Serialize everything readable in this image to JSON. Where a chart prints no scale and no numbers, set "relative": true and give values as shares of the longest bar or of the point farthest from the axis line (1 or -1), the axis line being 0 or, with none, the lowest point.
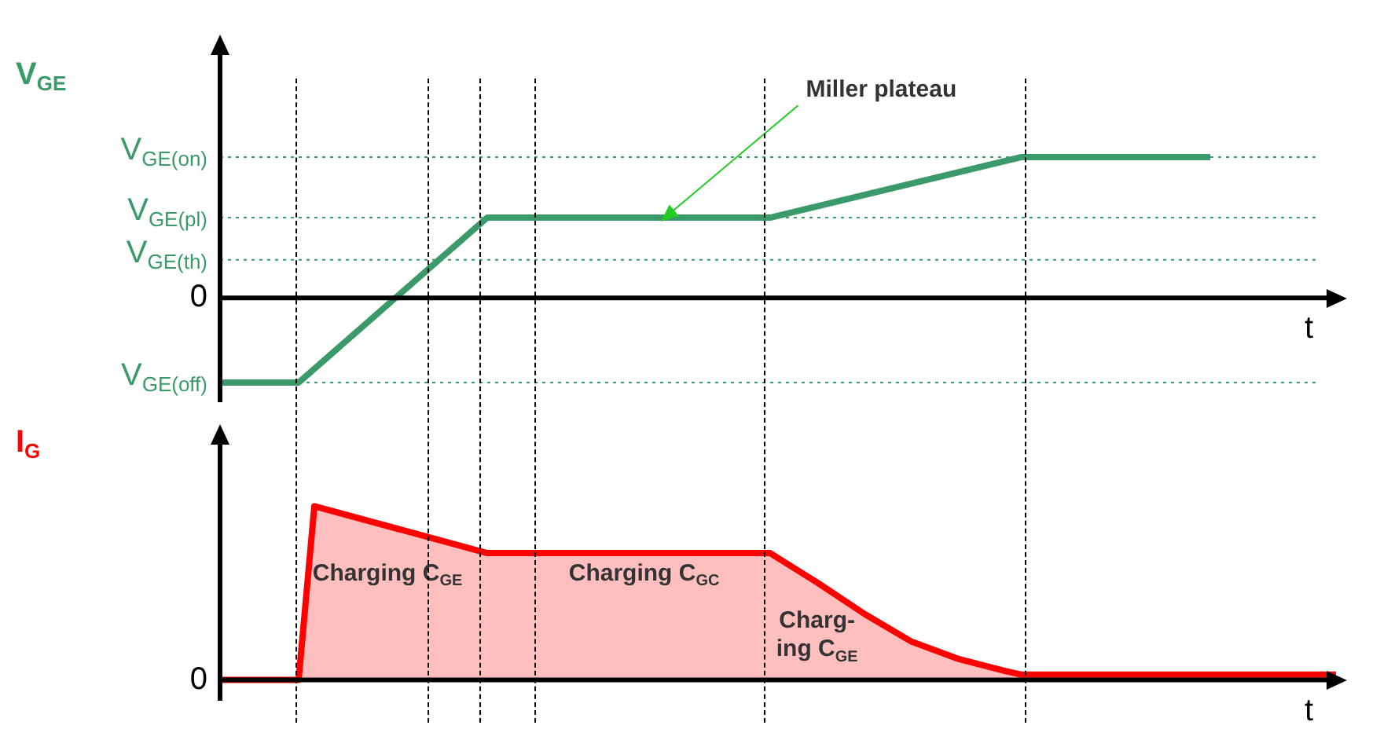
{
  "chart_data": [
    {
      "type": "line",
      "ylabel": "V$_{GE}$",
      "xlabel": "t",
      "relative": true,
      "tick_labels": false,
      "legend": false,
      "categories": [
        null,
        null,
        null,
        null,
        null,
        null,
        null,
        null,
        null,
        null,
        null,
        null,
        null,
        null,
        null,
        null,
        null,
        null,
        null,
        null,
        null,
        null,
        null,
        null,
        null,
        null,
        null,
        null,
        null,
        null,
        null,
        null,
        null,
        null,
        null,
        null,
        null,
        null,
        null,
        null,
        null,
        null,
        null,
        null,
        null,
        null,
        null,
        null,
        null,
        null,
        null,
        null,
        null,
        null,
        null,
        null,
        null,
        null,
        null,
        null,
        null,
        null,
        null,
        null,
        null,
        null,
        null,
        null,
        null,
        null,
        null,
        null
      ],
      "series": [
        {
          "color": "#3a9a6a",
          "values": [
            -0.6,
            null,
            null,
            null,
            null,
            -0.6,
            null,
            null,
            null,
            null,
            null,
            null,
            null,
            null,
            null,
            null,
            null,
            0.57,
            null,
            null,
            null,
            null,
            null,
            null,
            null,
            null,
            null,
            null,
            null,
            null,
            null,
            null,
            null,
            null,
            null,
            0.57,
            null,
            null,
            null,
            null,
            null,
            null,
            null,
            null,
            null,
            null,
            null,
            null,
            null,
            null,
            null,
            1,
            null,
            null,
            null,
            null,
            null,
            null,
            null,
            null,
            null,
            null,
            null,
            1,
            null,
            null,
            null,
            null,
            null,
            null,
            null,
            null
          ]
        }
      ],
      "ref_lines": [
        {
          "axis": "y",
          "value": 1,
          "label": "V$_{GE(on)}$",
          "color": "#3a9a6a",
          "line_style": "dotted"
        },
        {
          "axis": "y",
          "value": 0.57,
          "label": "V$_{GE(pl)}$",
          "color": "#3a9a6a",
          "line_style": "dotted"
        },
        {
          "axis": "y",
          "value": 0.27,
          "label": "V$_{GE(th)}$",
          "color": "#3a9a6a",
          "line_style": "dotted"
        },
        {
          "axis": "y",
          "value": 0,
          "label": "0",
          "color": "#000000",
          "line_style": "solid"
        },
        {
          "axis": "y",
          "value": -0.6,
          "label": "V$_{GE(off)}$",
          "color": "#3a9a6a",
          "line_style": "dotted"
        }
      ],
      "annotations": [
        "Miller plateau"
      ]
    },
    {
      "type": "area",
      "ylabel": "I$_{G}$",
      "xlabel": "t",
      "relative": true,
      "tick_labels": false,
      "legend": false,
      "categories": [
        null,
        null,
        null,
        null,
        null,
        null,
        null,
        null,
        null,
        null,
        null,
        null,
        null,
        null,
        null,
        null,
        null,
        null,
        null,
        null,
        null,
        null,
        null,
        null,
        null,
        null,
        null,
        null,
        null,
        null,
        null,
        null,
        null,
        null,
        null,
        null,
        null,
        null,
        null,
        null,
        null,
        null,
        null,
        null,
        null,
        null,
        null,
        null,
        null,
        null,
        null,
        null,
        null,
        null,
        null,
        null,
        null,
        null,
        null,
        null,
        null,
        null,
        null,
        null,
        null,
        null,
        null,
        null,
        null,
        null,
        null,
        null
      ],
      "series": [
        {
          "color": "#ff0000",
          "values": [
            0,
            null,
            null,
            null,
            null,
            0,
            1,
            null,
            null,
            null,
            null,
            null,
            null,
            null,
            null,
            null,
            null,
            0.73,
            null,
            null,
            null,
            null,
            null,
            null,
            null,
            null,
            null,
            null,
            null,
            null,
            null,
            null,
            null,
            null,
            null,
            0.73,
            null,
            null,
            0.56,
            null,
            null,
            0.38,
            null,
            null,
            0.22,
            null,
            null,
            0.12,
            null,
            null,
            0.05,
            0.03,
            null,
            null,
            null,
            null,
            null,
            null,
            null,
            null,
            null,
            null,
            null,
            null,
            null,
            null,
            null,
            null,
            null,
            null,
            null,
            0.03
          ]
        }
      ],
      "ref_lines": [
        {
          "axis": "y",
          "value": 0,
          "label": "0",
          "color": "#000000",
          "line_style": "solid"
        }
      ],
      "annotations": [
        "Charging C$_{GE}$",
        "Charging C$_{GC}$",
        "Charg-\ning C$_{GE}$"
      ]
    }
  ]
}
